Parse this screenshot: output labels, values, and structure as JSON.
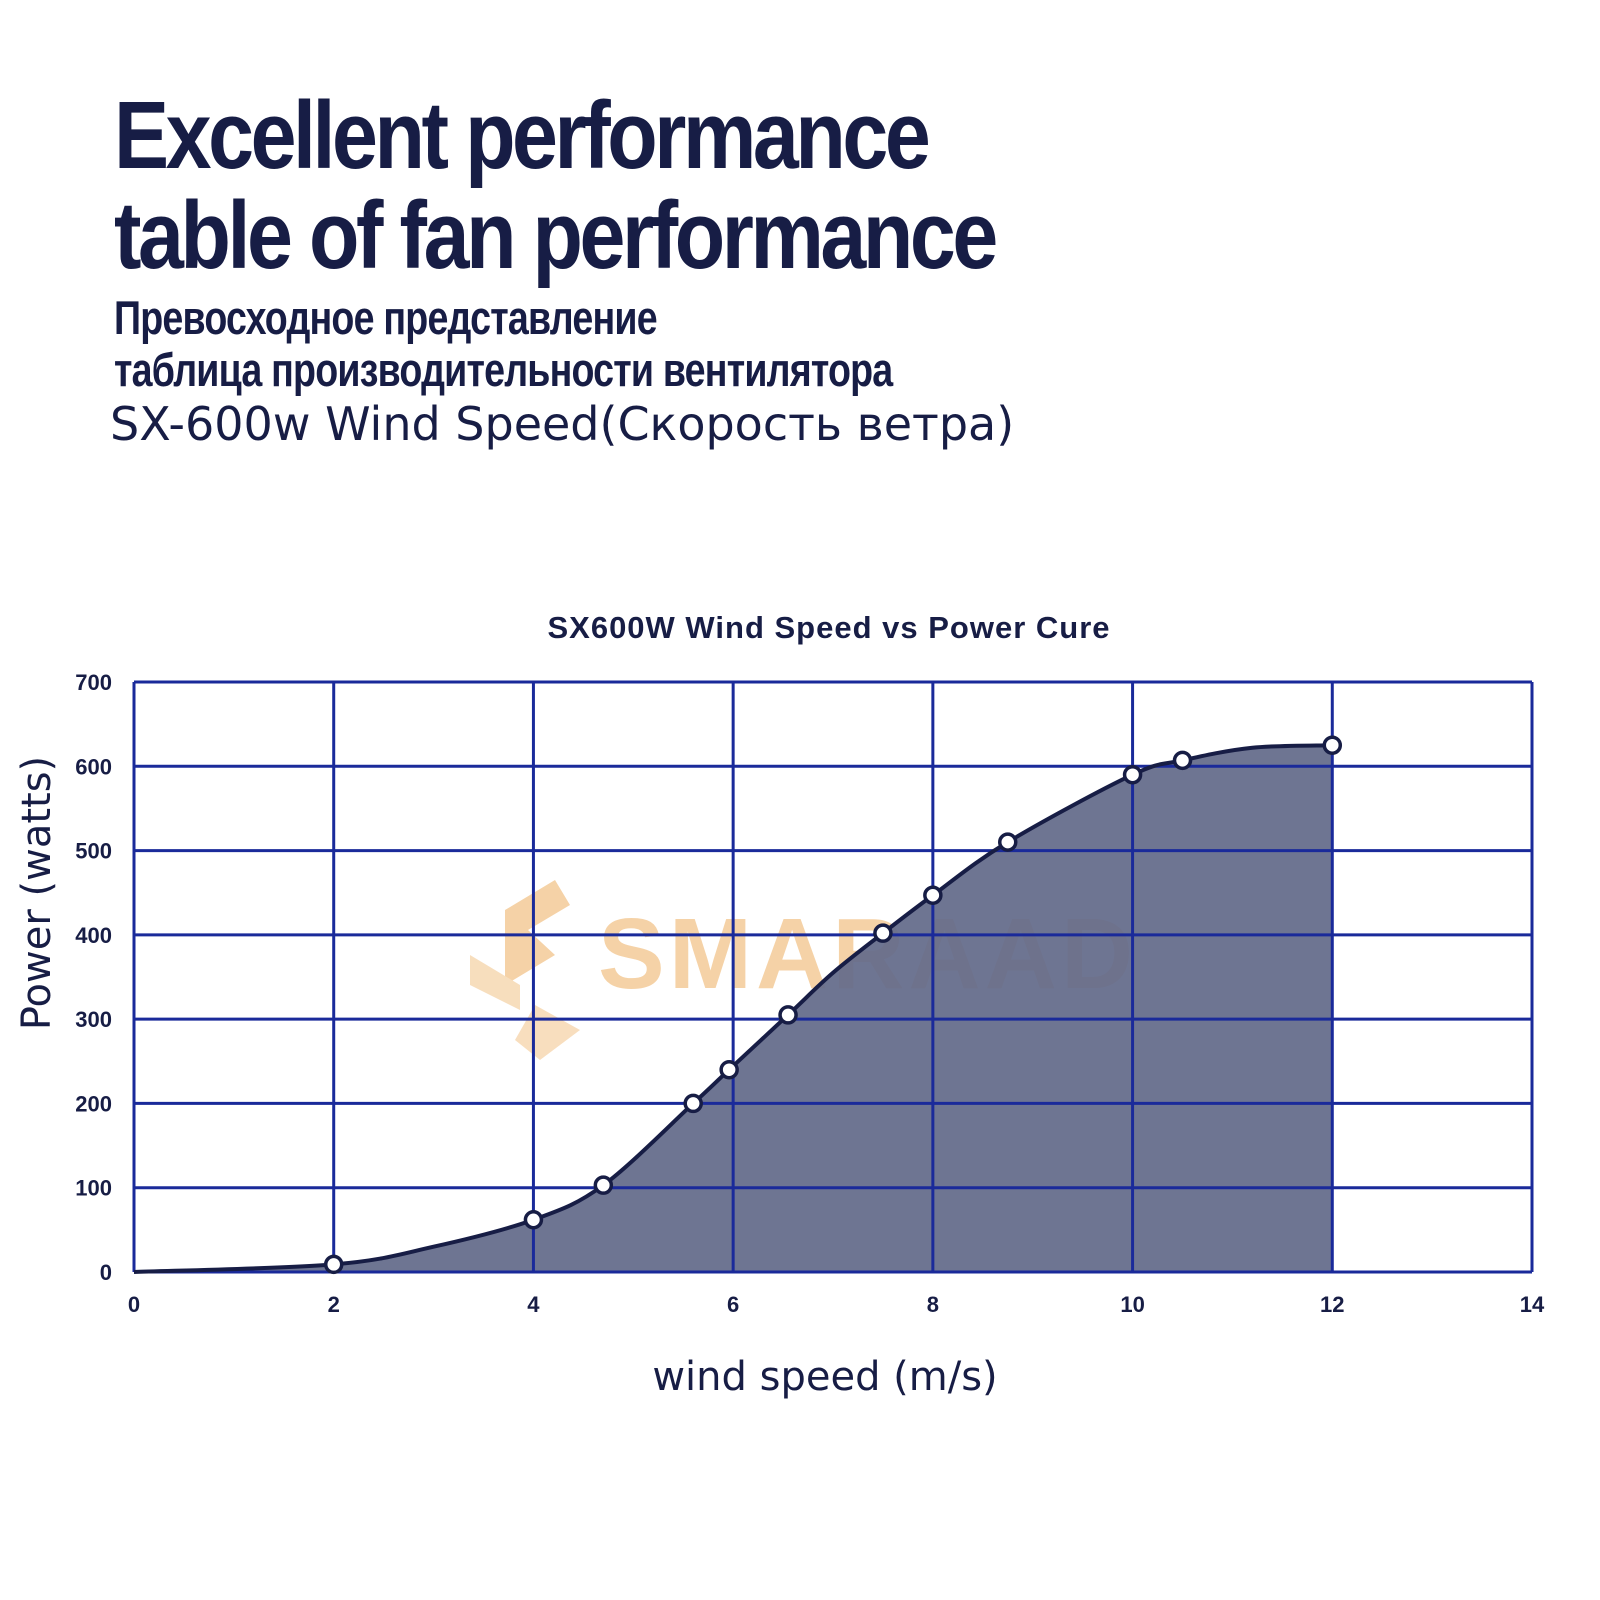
{
  "heading": {
    "line1": "Excellent performance",
    "line2": "table of fan performance"
  },
  "subheading": {
    "line1": "Превосходное представление",
    "line2": "таблица производительности вентилятора"
  },
  "model_line": "SX-600w Wind Speed(Скорость ветра)",
  "watermark": "SMARAAD",
  "colors": {
    "text": "#171d45",
    "grid": "#1a2a9a",
    "fill": "#636b8a",
    "line": "#171d45",
    "watermark": "#f2c48a"
  },
  "chart_data": {
    "type": "area",
    "title": "SX600W Wind Speed vs Power Cure",
    "xlabel": "wind speed (m/s)",
    "ylabel": "Power (watts)",
    "xlim": [
      0,
      14
    ],
    "ylim": [
      0,
      700
    ],
    "x_ticks": [
      "0",
      "2",
      "4",
      "6",
      "8",
      "10",
      "12",
      "14"
    ],
    "y_ticks": [
      "0",
      "100",
      "200",
      "300",
      "400",
      "500",
      "600",
      "700"
    ],
    "grid": true,
    "legend": "none",
    "markers": [
      {
        "x": 2,
        "y": 9
      },
      {
        "x": 4,
        "y": 62
      },
      {
        "x": 4.7,
        "y": 103
      },
      {
        "x": 5.6,
        "y": 200
      },
      {
        "x": 5.96,
        "y": 240
      },
      {
        "x": 6.55,
        "y": 305
      },
      {
        "x": 7.5,
        "y": 402
      },
      {
        "x": 8,
        "y": 447
      },
      {
        "x": 8.75,
        "y": 510
      },
      {
        "x": 10,
        "y": 590
      },
      {
        "x": 10.5,
        "y": 607
      },
      {
        "x": 12,
        "y": 625
      }
    ],
    "curve": [
      {
        "x": 0,
        "y": 0
      },
      {
        "x": 2,
        "y": 9
      },
      {
        "x": 3,
        "y": 30
      },
      {
        "x": 4,
        "y": 62
      },
      {
        "x": 4.7,
        "y": 103
      },
      {
        "x": 5.6,
        "y": 200
      },
      {
        "x": 5.96,
        "y": 240
      },
      {
        "x": 6.55,
        "y": 305
      },
      {
        "x": 7,
        "y": 355
      },
      {
        "x": 7.5,
        "y": 402
      },
      {
        "x": 8,
        "y": 447
      },
      {
        "x": 8.75,
        "y": 510
      },
      {
        "x": 10,
        "y": 590
      },
      {
        "x": 10.5,
        "y": 607
      },
      {
        "x": 11.2,
        "y": 622
      },
      {
        "x": 12,
        "y": 625
      }
    ]
  }
}
